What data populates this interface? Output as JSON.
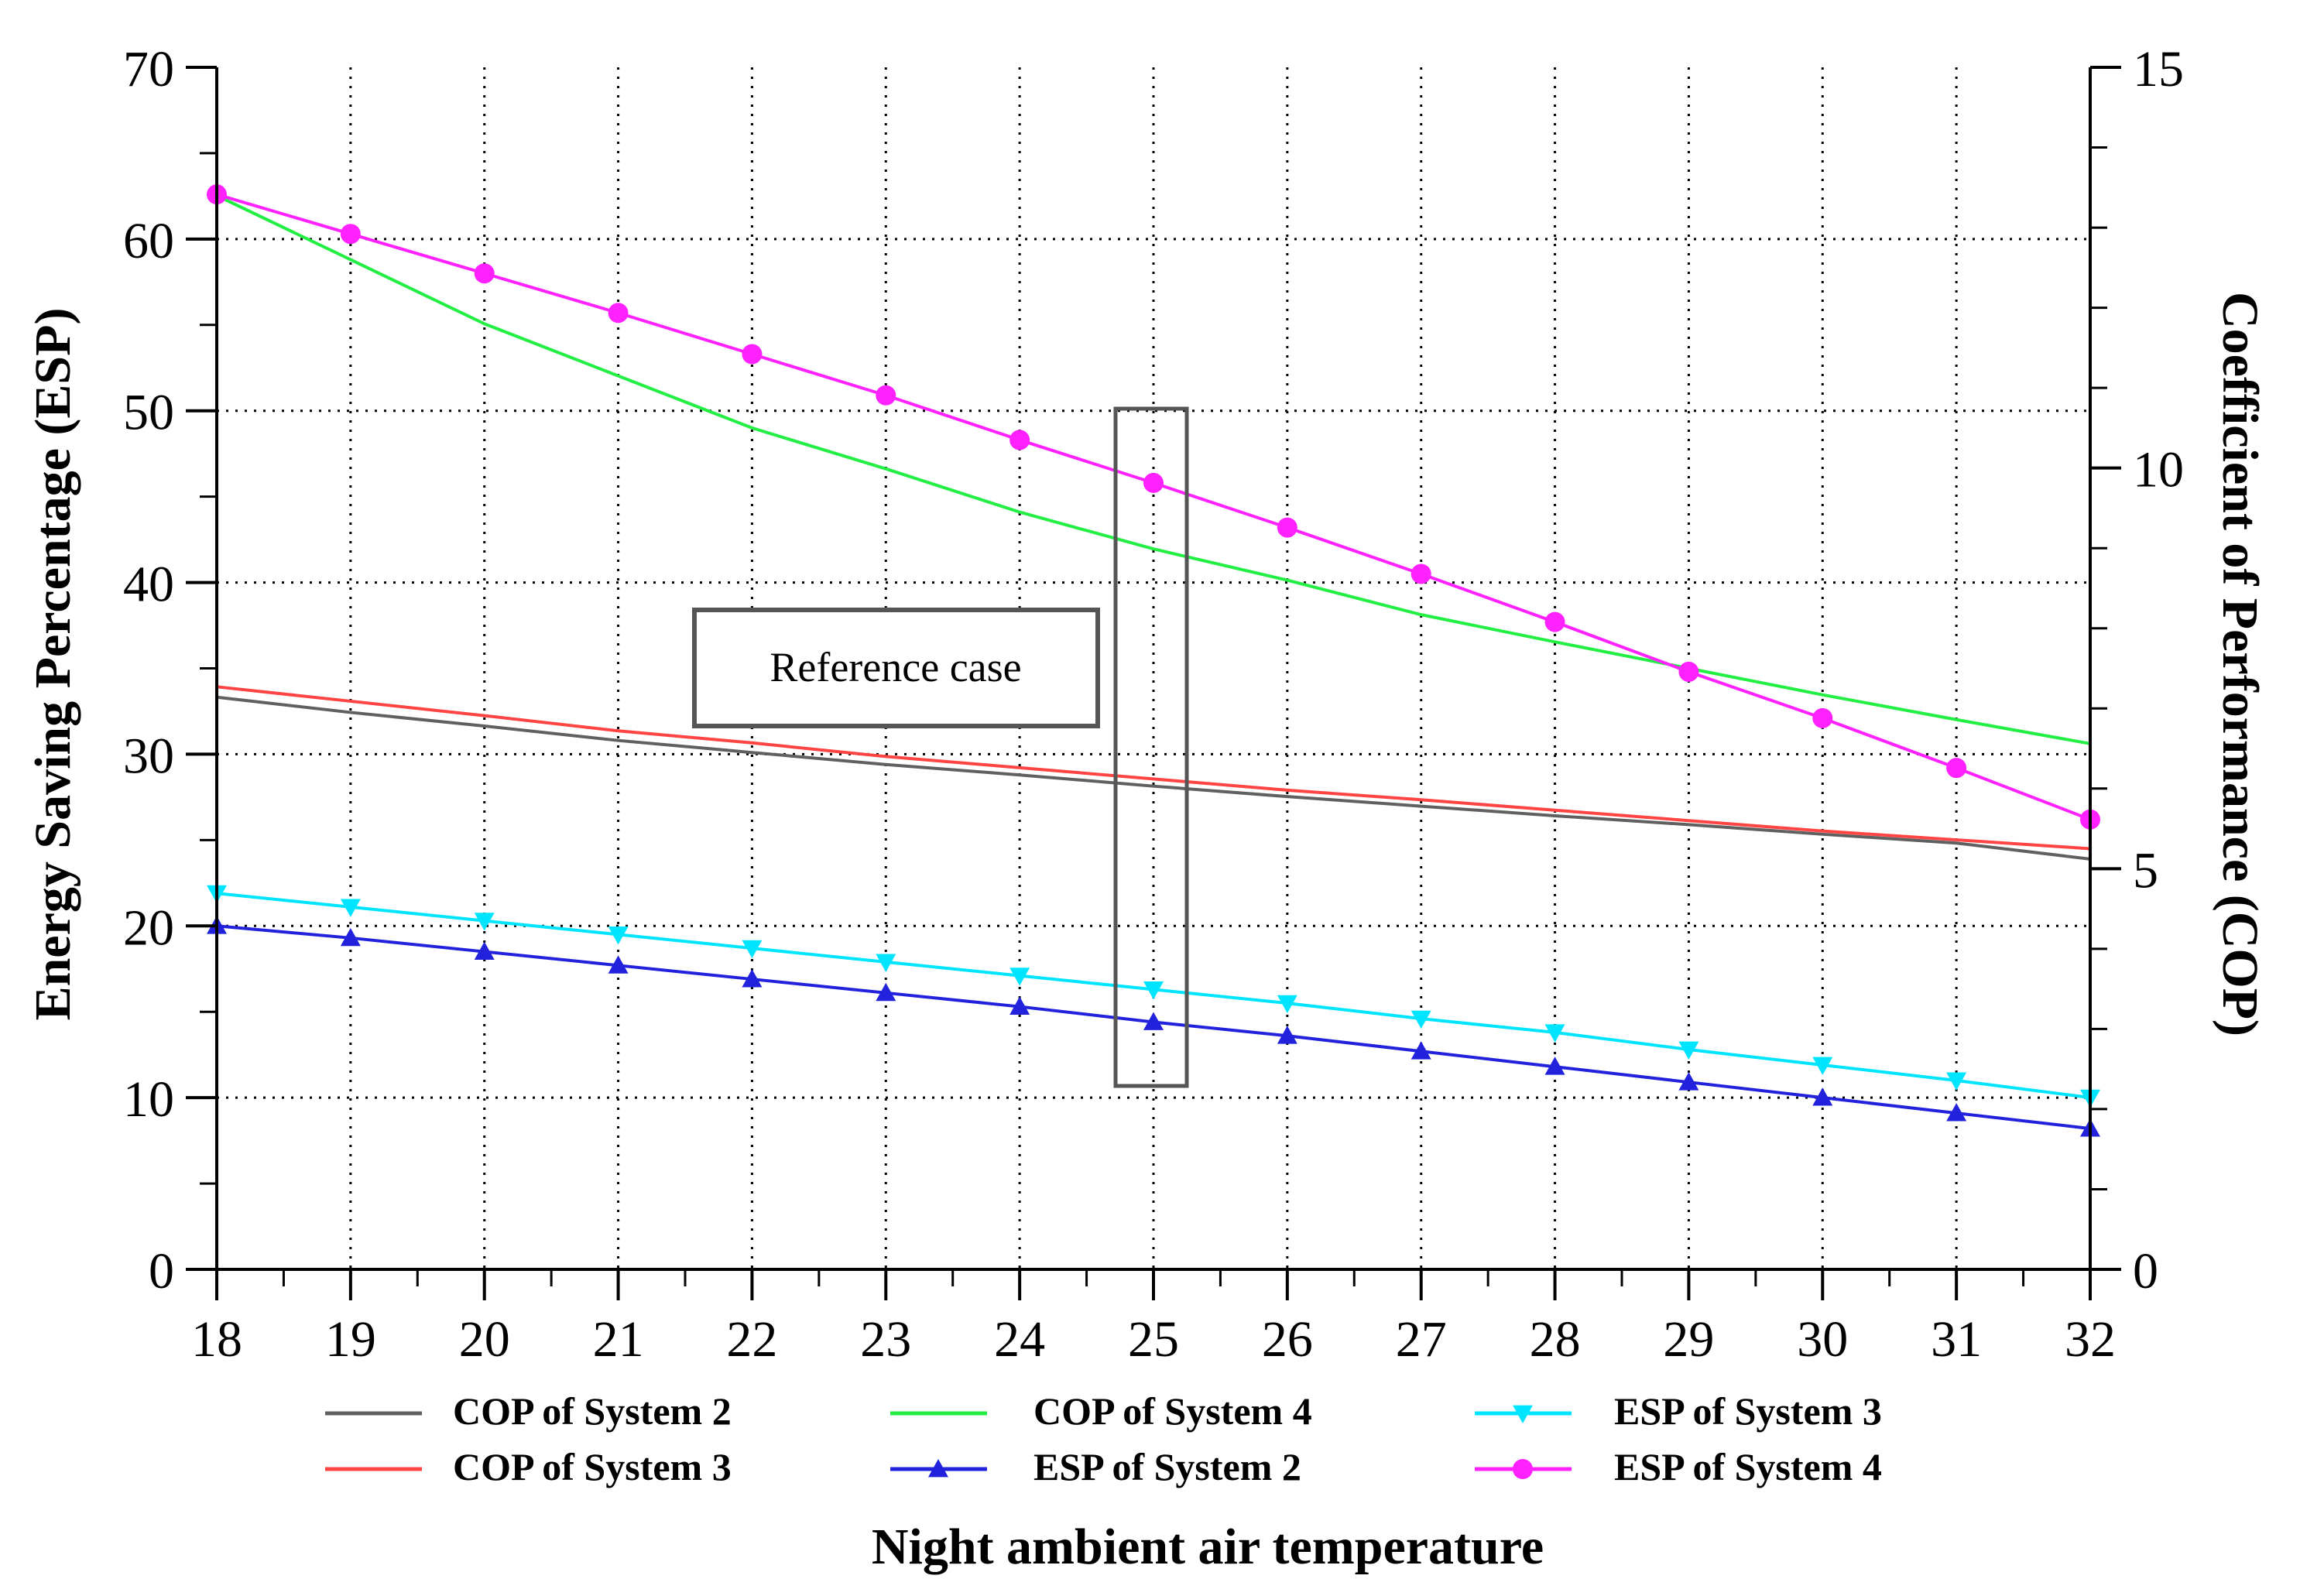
{
  "chart_data": {
    "type": "line",
    "title": "",
    "xlabel": "Night ambient air temperature",
    "ylabel_left": "Energy Saving Percentage (ESP)",
    "ylabel_right": "Coefficient of Performance (COP)",
    "x": [
      18,
      19,
      20,
      21,
      22,
      23,
      24,
      25,
      26,
      27,
      28,
      29,
      30,
      31,
      32
    ],
    "xlim": [
      18,
      32
    ],
    "ylim_left": [
      0,
      70
    ],
    "ylim_right": [
      0,
      15
    ],
    "x_ticks": [
      "18",
      "19",
      "20",
      "21",
      "22",
      "23",
      "24",
      "25",
      "26",
      "27",
      "28",
      "29",
      "30",
      "31",
      "32"
    ],
    "y_ticks_left": [
      "0",
      "10",
      "20",
      "30",
      "40",
      "50",
      "60",
      "70"
    ],
    "y_ticks_right": [
      "0",
      "5",
      "10",
      "15"
    ],
    "grid": true,
    "legend_position": "bottom",
    "series": [
      {
        "name": "COP of System 2",
        "axis": "right",
        "color": "#606060",
        "marker": "none",
        "values": [
          7.14,
          6.95,
          6.78,
          6.6,
          6.45,
          6.3,
          6.17,
          6.03,
          5.9,
          5.78,
          5.66,
          5.55,
          5.43,
          5.32,
          5.12
        ]
      },
      {
        "name": "COP of System 3",
        "axis": "right",
        "color": "#ff4444",
        "marker": "none",
        "values": [
          7.27,
          7.09,
          6.91,
          6.72,
          6.57,
          6.4,
          6.26,
          6.12,
          5.98,
          5.86,
          5.73,
          5.6,
          5.47,
          5.36,
          5.25
        ]
      },
      {
        "name": "COP of System 4",
        "axis": "right",
        "color": "#22ee44",
        "marker": "none",
        "values": [
          13.4,
          12.6,
          11.8,
          11.15,
          10.5,
          9.99,
          9.45,
          8.99,
          8.6,
          8.17,
          7.83,
          7.5,
          7.17,
          6.86,
          6.56
        ]
      },
      {
        "name": "ESP of System 2",
        "axis": "left",
        "color": "#2222dd",
        "marker": "triangle",
        "values": [
          20,
          19.3,
          18.5,
          17.7,
          16.9,
          16.1,
          15.3,
          14.4,
          13.6,
          12.7,
          11.8,
          10.9,
          10,
          9.1,
          8.2
        ]
      },
      {
        "name": "ESP of System 3",
        "axis": "left",
        "color": "#00e5ff",
        "marker": "triangle-down",
        "values": [
          21.9,
          21.1,
          20.3,
          19.5,
          18.7,
          17.9,
          17.1,
          16.3,
          15.5,
          14.6,
          13.8,
          12.8,
          11.9,
          11,
          10
        ]
      },
      {
        "name": "ESP of System 4",
        "axis": "left",
        "color": "#ff22ff",
        "marker": "circle",
        "values": [
          62.6,
          60.3,
          58,
          55.7,
          53.3,
          50.9,
          48.3,
          45.8,
          43.2,
          40.5,
          37.7,
          34.8,
          32.1,
          29.2,
          26.2
        ]
      }
    ],
    "annotations": [
      {
        "text": "Reference case",
        "target_x": 25
      }
    ]
  }
}
